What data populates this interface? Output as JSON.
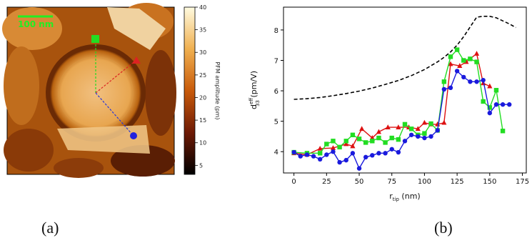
{
  "labels": {
    "a": "(a)",
    "b": "(b)"
  },
  "map": {
    "scale_bar_label": "100 nm",
    "colorbar": {
      "label": "PFM amplitude (pm)",
      "ticks": [
        5,
        10,
        15,
        20,
        25,
        30,
        35,
        40
      ],
      "range": [
        3,
        40
      ]
    },
    "markers": [
      {
        "name": "green-square",
        "color": "#22dd22"
      },
      {
        "name": "red-triangle",
        "color": "#dd2222"
      },
      {
        "name": "blue-circle",
        "color": "#2222dd"
      }
    ]
  },
  "chart_data": {
    "type": "line",
    "xlabel_main": "r",
    "xlabel_sub": "tip",
    "xlabel_unit": " (nm)",
    "ylabel_main": "d",
    "ylabel_sub": "33",
    "ylabel_sup": "eff",
    "ylabel_unit": " (pm/V)",
    "xlim": [
      -8,
      178
    ],
    "ylim": [
      3.3,
      8.75
    ],
    "xticks": [
      0,
      25,
      50,
      75,
      100,
      125,
      150,
      175
    ],
    "yticks": [
      4,
      5,
      6,
      7,
      8
    ],
    "series": [
      {
        "style": "dashed",
        "color": "#000000",
        "marker": "none",
        "x": [
          0,
          10,
          20,
          30,
          40,
          50,
          60,
          70,
          80,
          90,
          100,
          110,
          115,
          120,
          125,
          130,
          135,
          140,
          145,
          150,
          155,
          160,
          165,
          170
        ],
        "y": [
          5.72,
          5.74,
          5.78,
          5.84,
          5.91,
          5.99,
          6.09,
          6.21,
          6.34,
          6.5,
          6.7,
          6.95,
          7.1,
          7.28,
          7.5,
          7.78,
          8.1,
          8.42,
          8.45,
          8.45,
          8.4,
          8.3,
          8.2,
          8.08
        ]
      },
      {
        "style": "solid",
        "color": "#dd1111",
        "marker": "triangle",
        "x": [
          0,
          10,
          20,
          30,
          40,
          45,
          52,
          60,
          65,
          72,
          80,
          88,
          95,
          100,
          105,
          110,
          115,
          120,
          127,
          132,
          140,
          145,
          150
        ],
        "y": [
          3.95,
          3.9,
          4.1,
          4.12,
          4.25,
          4.18,
          4.75,
          4.45,
          4.65,
          4.8,
          4.8,
          4.8,
          4.75,
          4.95,
          4.9,
          4.9,
          4.95,
          6.88,
          6.82,
          6.95,
          7.22,
          6.25,
          6.15
        ]
      },
      {
        "style": "solid",
        "color": "#22dd22",
        "marker": "square",
        "x": [
          0,
          10,
          20,
          25,
          30,
          35,
          40,
          45,
          50,
          55,
          60,
          65,
          70,
          75,
          80,
          85,
          90,
          95,
          100,
          105,
          110,
          115,
          120,
          125,
          130,
          135,
          140,
          145,
          150,
          155,
          160
        ],
        "y": [
          3.98,
          3.95,
          3.95,
          4.25,
          4.35,
          4.15,
          4.35,
          4.55,
          4.42,
          4.3,
          4.35,
          4.45,
          4.3,
          4.45,
          4.4,
          4.9,
          4.75,
          4.55,
          4.6,
          4.92,
          4.7,
          6.3,
          7.12,
          7.35,
          7.0,
          7.05,
          6.95,
          5.65,
          5.45,
          6.02,
          4.68
        ]
      },
      {
        "style": "solid",
        "color": "#1a1add",
        "marker": "circle",
        "x": [
          0,
          5,
          10,
          15,
          20,
          25,
          30,
          35,
          40,
          45,
          50,
          55,
          60,
          65,
          70,
          75,
          80,
          85,
          90,
          95,
          100,
          105,
          110,
          115,
          120,
          125,
          130,
          135,
          140,
          145,
          150,
          155,
          160,
          165
        ],
        "y": [
          3.98,
          3.85,
          3.9,
          3.85,
          3.75,
          3.9,
          4.0,
          3.65,
          3.72,
          3.95,
          3.45,
          3.82,
          3.88,
          3.95,
          3.95,
          4.08,
          3.98,
          4.35,
          4.55,
          4.5,
          4.45,
          4.5,
          4.7,
          6.05,
          6.1,
          6.65,
          6.45,
          6.3,
          6.3,
          6.35,
          5.27,
          5.55,
          5.55,
          5.55
        ]
      }
    ]
  }
}
